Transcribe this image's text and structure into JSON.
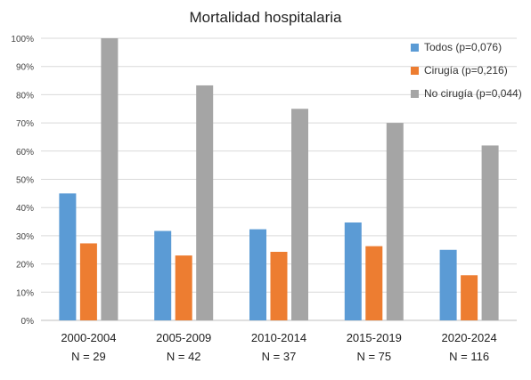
{
  "chart_data": {
    "type": "bar",
    "title": "Mortalidad hospitalaria",
    "xlabel": "",
    "ylabel": "",
    "categories": [
      "2000-2004",
      "2005-2009",
      "2010-2014",
      "2015-2019",
      "2020-2024"
    ],
    "category_n": [
      "N = 29",
      "N = 42",
      "N = 37",
      "N = 75",
      "N = 116"
    ],
    "series": [
      {
        "name": "Todos (p=0,076)",
        "color": "#5b9bd5",
        "values": [
          45,
          31.7,
          32.3,
          34.7,
          25
        ]
      },
      {
        "name": "Cirugía (p=0,216)",
        "color": "#ed7d31",
        "values": [
          27.3,
          23,
          24.3,
          26.3,
          16
        ]
      },
      {
        "name": "No cirugía (p=0,044)",
        "color": "#a5a5a5",
        "values": [
          100,
          83.3,
          75,
          70,
          62
        ]
      }
    ],
    "ylim": [
      0,
      100
    ],
    "yticks": [
      "0%",
      "10%",
      "20%",
      "30%",
      "40%",
      "50%",
      "60%",
      "70%",
      "80%",
      "90%",
      "100%"
    ],
    "grid": true,
    "legend_position": "top-right"
  }
}
